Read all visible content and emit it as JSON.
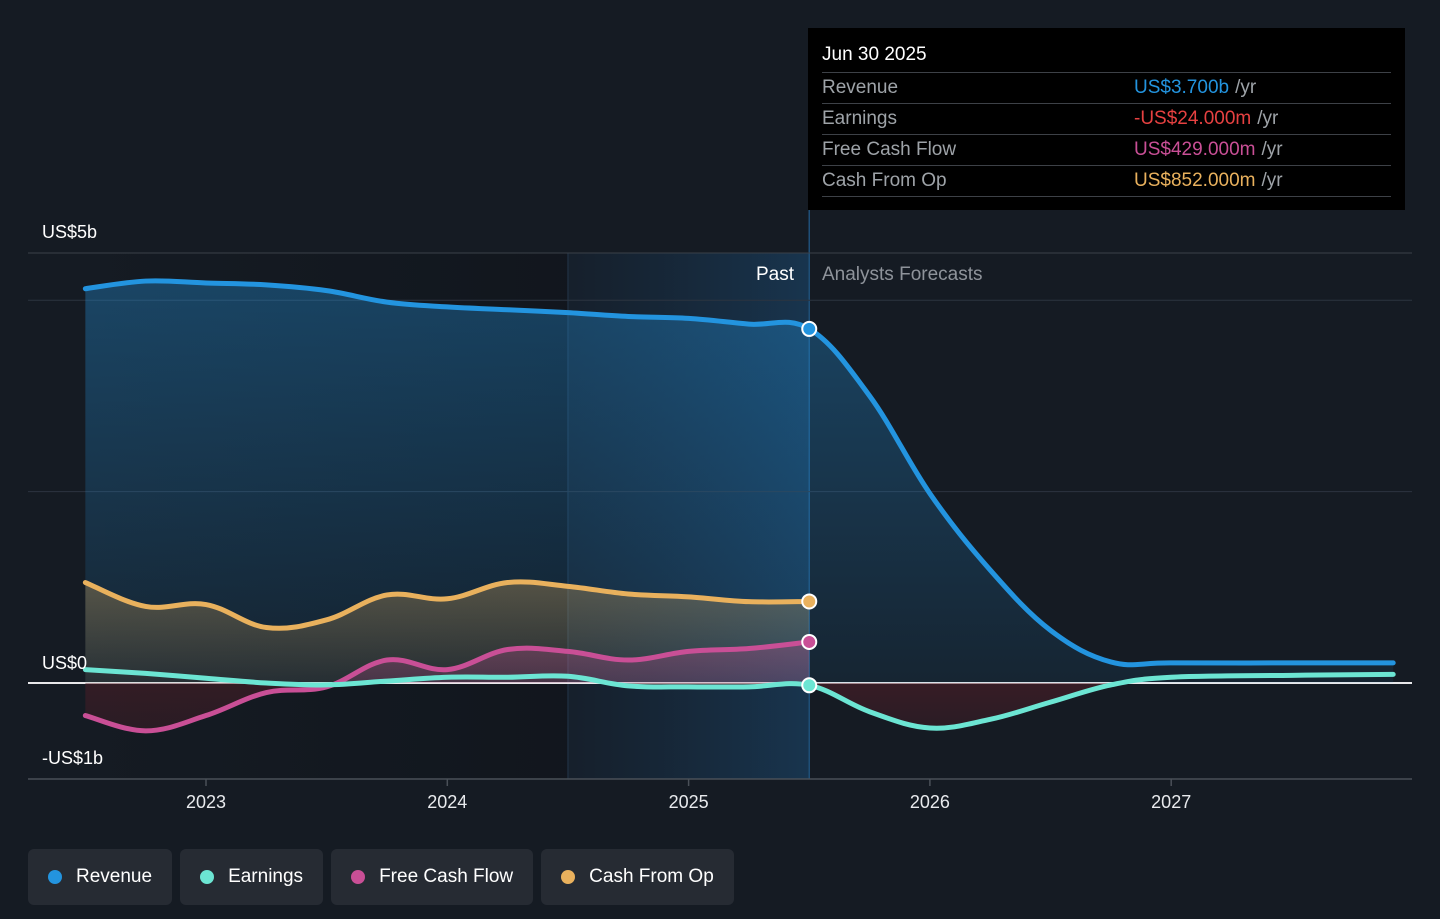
{
  "tooltip": {
    "date": "Jun 30 2025",
    "rows": [
      {
        "name": "Revenue",
        "value": "US$3.700b",
        "unit": "/yr",
        "color": "#2394df"
      },
      {
        "name": "Earnings",
        "value": "-US$24.000m",
        "unit": "/yr",
        "color": "#e64141"
      },
      {
        "name": "Free Cash Flow",
        "value": "US$429.000m",
        "unit": "/yr",
        "color": "#c94f96"
      },
      {
        "name": "Cash From Op",
        "value": "US$852.000m",
        "unit": "/yr",
        "color": "#e9b15d"
      }
    ]
  },
  "regions": {
    "past_label": "Past",
    "forecast_label": "Analysts Forecasts"
  },
  "legend": [
    {
      "label": "Revenue",
      "color": "#2394df"
    },
    {
      "label": "Earnings",
      "color": "#6ce5d3"
    },
    {
      "label": "Free Cash Flow",
      "color": "#c94f96"
    },
    {
      "label": "Cash From Op",
      "color": "#e9b15d"
    }
  ],
  "chart_data": {
    "type": "line",
    "title": "",
    "xlabel": "",
    "ylabel": "",
    "y_unit": "US$ billions",
    "ytick_labels": [
      {
        "value": 5,
        "label": "US$5b"
      },
      {
        "value": 0,
        "label": "US$0"
      },
      {
        "value": -1,
        "label": "-US$1b"
      }
    ],
    "xtick_labels": [
      {
        "value": 2023,
        "label": "2023"
      },
      {
        "value": 2024,
        "label": "2024"
      },
      {
        "value": 2025,
        "label": "2025"
      },
      {
        "value": 2026,
        "label": "2026"
      },
      {
        "value": 2027,
        "label": "2027"
      }
    ],
    "xlim": [
      2021.77,
      2027.92
    ],
    "ylim": [
      -1.0,
      4.49
    ],
    "gridlines": [
      2.0,
      4.0
    ],
    "past_end": 2025.5,
    "highlight_start": 2024.5,
    "series": [
      {
        "name": "Revenue",
        "color": "#2394df",
        "points": [
          [
            2022.5,
            4.12
          ],
          [
            2022.75,
            4.2
          ],
          [
            2023.0,
            4.18
          ],
          [
            2023.25,
            4.16
          ],
          [
            2023.5,
            4.1
          ],
          [
            2023.75,
            3.98
          ],
          [
            2024.0,
            3.93
          ],
          [
            2024.25,
            3.9
          ],
          [
            2024.5,
            3.87
          ],
          [
            2024.75,
            3.83
          ],
          [
            2025.0,
            3.81
          ],
          [
            2025.25,
            3.75
          ],
          [
            2025.5,
            3.7
          ],
          [
            2025.75,
            3.0
          ],
          [
            2026.0,
            1.98
          ],
          [
            2026.25,
            1.18
          ],
          [
            2026.5,
            0.55
          ],
          [
            2026.75,
            0.22
          ],
          [
            2027.0,
            0.21
          ],
          [
            2027.5,
            0.21
          ],
          [
            2027.92,
            0.21
          ]
        ]
      },
      {
        "name": "Earnings",
        "color": "#6ce5d3",
        "points": [
          [
            2022.5,
            0.14
          ],
          [
            2022.75,
            0.1
          ],
          [
            2023.0,
            0.05
          ],
          [
            2023.25,
            0.0
          ],
          [
            2023.5,
            -0.02
          ],
          [
            2023.75,
            0.02
          ],
          [
            2024.0,
            0.06
          ],
          [
            2024.25,
            0.06
          ],
          [
            2024.5,
            0.07
          ],
          [
            2024.75,
            -0.03
          ],
          [
            2025.0,
            -0.04
          ],
          [
            2025.25,
            -0.04
          ],
          [
            2025.5,
            -0.024
          ],
          [
            2025.75,
            -0.3
          ],
          [
            2026.0,
            -0.47
          ],
          [
            2026.25,
            -0.38
          ],
          [
            2026.5,
            -0.2
          ],
          [
            2026.75,
            -0.02
          ],
          [
            2027.0,
            0.06
          ],
          [
            2027.5,
            0.08
          ],
          [
            2027.92,
            0.09
          ]
        ]
      },
      {
        "name": "Free Cash Flow",
        "color": "#c94f96",
        "points": [
          [
            2022.5,
            -0.34
          ],
          [
            2022.75,
            -0.5
          ],
          [
            2023.0,
            -0.34
          ],
          [
            2023.25,
            -0.1
          ],
          [
            2023.5,
            -0.04
          ],
          [
            2023.75,
            0.24
          ],
          [
            2024.0,
            0.14
          ],
          [
            2024.25,
            0.35
          ],
          [
            2024.5,
            0.33
          ],
          [
            2024.75,
            0.24
          ],
          [
            2025.0,
            0.33
          ],
          [
            2025.25,
            0.36
          ],
          [
            2025.5,
            0.429
          ]
        ]
      },
      {
        "name": "Cash From Op",
        "color": "#e9b15d",
        "points": [
          [
            2022.5,
            1.05
          ],
          [
            2022.75,
            0.8
          ],
          [
            2023.0,
            0.82
          ],
          [
            2023.25,
            0.58
          ],
          [
            2023.5,
            0.66
          ],
          [
            2023.75,
            0.92
          ],
          [
            2024.0,
            0.88
          ],
          [
            2024.25,
            1.05
          ],
          [
            2024.5,
            1.01
          ],
          [
            2024.75,
            0.93
          ],
          [
            2025.0,
            0.9
          ],
          [
            2025.25,
            0.85
          ],
          [
            2025.5,
            0.852
          ]
        ]
      }
    ]
  }
}
